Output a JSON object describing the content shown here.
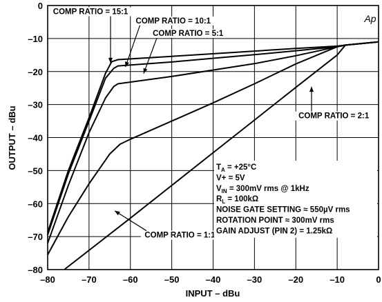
{
  "chart_data": {
    "type": "line",
    "xlabel": "INPUT – dBu",
    "ylabel": "OUTPUT – dBu",
    "xlim": [
      -80,
      0
    ],
    "ylim": [
      -80,
      0
    ],
    "x_ticks": [
      "–80",
      "–70",
      "–60",
      "–50",
      "–40",
      "–30",
      "–20",
      "–10",
      "0"
    ],
    "y_ticks": [
      "0",
      "–10",
      "–20",
      "–30",
      "–40",
      "–50",
      "–60",
      "–70",
      "–80"
    ],
    "grid": true,
    "logo": "Ap",
    "series": [
      {
        "name": "COMP RATIO = 15:1",
        "points": [
          [
            -80,
            -68.7
          ],
          [
            -75,
            -50
          ],
          [
            -70,
            -34
          ],
          [
            -66,
            -20.5
          ],
          [
            -64.5,
            -17
          ],
          [
            -63,
            -16.4
          ],
          [
            -50,
            -15.4
          ],
          [
            -30,
            -13.8
          ],
          [
            -20,
            -13
          ],
          [
            -10,
            -12.3
          ],
          [
            -8,
            -12
          ],
          [
            0,
            -11
          ]
        ]
      },
      {
        "name": "COMP RATIO = 10:1",
        "points": [
          [
            -80,
            -69.5
          ],
          [
            -75,
            -51
          ],
          [
            -70,
            -35
          ],
          [
            -66,
            -22
          ],
          [
            -64,
            -19
          ],
          [
            -63,
            -18.3
          ],
          [
            -50,
            -17.1
          ],
          [
            -30,
            -14.9
          ],
          [
            -20,
            -13.7
          ],
          [
            -10,
            -12.5
          ],
          [
            -8,
            -12
          ],
          [
            0,
            -11
          ]
        ]
      },
      {
        "name": "COMP RATIO = 5:1",
        "points": [
          [
            -80,
            -72
          ],
          [
            -75,
            -54.5
          ],
          [
            -70,
            -38.5
          ],
          [
            -66,
            -28
          ],
          [
            -64,
            -24.5
          ],
          [
            -63,
            -23.7
          ],
          [
            -50,
            -21.5
          ],
          [
            -30,
            -17.6
          ],
          [
            -20,
            -15.2
          ],
          [
            -10,
            -12.5
          ],
          [
            -8,
            -12
          ],
          [
            0,
            -11
          ]
        ]
      },
      {
        "name": "COMP RATIO = 2:1",
        "points": [
          [
            -80,
            -75.5
          ],
          [
            -75,
            -64
          ],
          [
            -70,
            -54
          ],
          [
            -65,
            -45
          ],
          [
            -62.5,
            -42
          ],
          [
            -60,
            -40.5
          ],
          [
            -50,
            -35
          ],
          [
            -40,
            -29.5
          ],
          [
            -30,
            -23.7
          ],
          [
            -20,
            -17.7
          ],
          [
            -10,
            -12.5
          ],
          [
            -8,
            -12
          ],
          [
            0,
            -11
          ]
        ]
      },
      {
        "name": "COMP RATIO = 1:1",
        "points": [
          [
            -76,
            -80
          ],
          [
            -60,
            -64.4
          ],
          [
            -40,
            -44.6
          ],
          [
            -20,
            -24.8
          ],
          [
            -10,
            -15
          ],
          [
            -8,
            -12
          ],
          [
            0,
            -11
          ]
        ]
      }
    ],
    "series_labels": [
      {
        "text": "COMP RATIO = 15:1",
        "x": -78.7,
        "y": -2.6,
        "anchor": "start",
        "arrow_to": [
          -64.8,
          -17.4
        ]
      },
      {
        "text": "COMP RATIO = 10:1",
        "x": -58.7,
        "y": -5.4,
        "anchor": "start",
        "arrow_to": [
          -61.2,
          -18.6
        ]
      },
      {
        "text": "COMP RATIO = 5:1",
        "x": -54.6,
        "y": -9.2,
        "anchor": "start",
        "arrow_to": [
          -56.8,
          -20.6
        ]
      },
      {
        "text": "COMP RATIO = 2:1",
        "x": -2.3,
        "y": -34.2,
        "anchor": "end",
        "arrow_to": [
          -16.2,
          -24.6
        ]
      },
      {
        "text": "COMP RATIO = 1:1",
        "x": -39.5,
        "y": -70.3,
        "anchor": "end",
        "arrow_to": [
          -63.8,
          -62.2
        ]
      }
    ],
    "annotations": [
      {
        "lines": [
          [
            "T",
            "A",
            " = +25°C"
          ],
          [
            "V+ = 5V"
          ],
          [
            "V",
            "IN",
            " = 300mV rms @ 1kHz"
          ],
          [
            "R",
            "L",
            " = 100kΩ"
          ],
          [
            "NOISE GATE SETTING ≈ 550µV rms"
          ],
          [
            "ROTATION POINT ≈ 300mV rms"
          ],
          [
            "GAIN ADJUST (PIN 2) = 1.25kΩ"
          ]
        ]
      }
    ]
  }
}
